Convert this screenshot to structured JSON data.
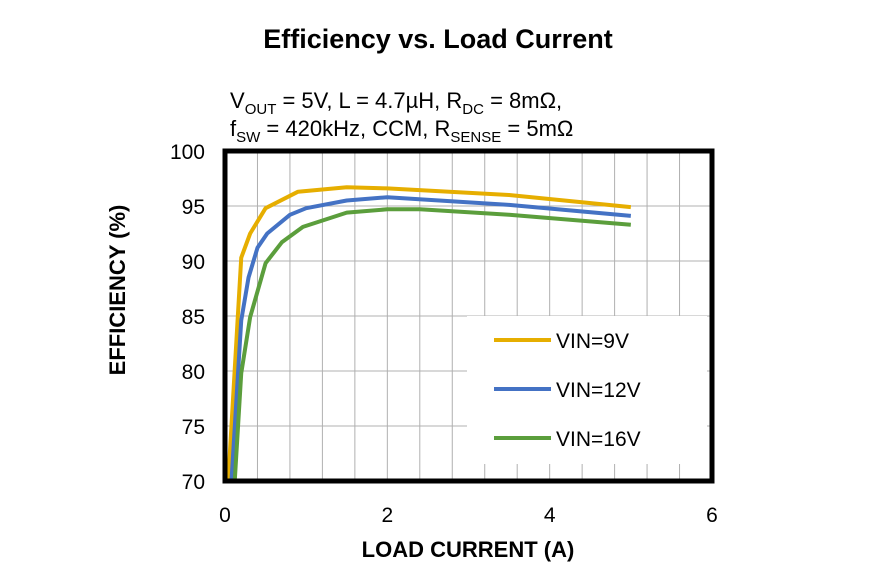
{
  "chart_data": {
    "type": "line",
    "title": "Efficiency vs. Load Current",
    "subtitle_line1": {
      "parts": [
        "V",
        "OUT",
        " = 5V, L = 4.7µH, R",
        "DC",
        " = 8mΩ,"
      ]
    },
    "subtitle_line2": {
      "parts": [
        "f",
        "SW",
        " = 420kHz, CCM, R",
        "SENSE",
        " = 5mΩ"
      ]
    },
    "xlabel": "LOAD CURRENT (A)",
    "ylabel": "EFFICIENCY (%)",
    "xlim": [
      0,
      6
    ],
    "ylim": [
      70,
      100
    ],
    "xticks": [
      0,
      2,
      4,
      6
    ],
    "yticks": [
      70,
      75,
      80,
      85,
      90,
      95,
      100
    ],
    "grid": true,
    "legend_position": "bottom-right",
    "series": [
      {
        "name": "VIN=9V",
        "color": "#E6AE00",
        "x": [
          0.04,
          0.2,
          0.31,
          0.5,
          0.9,
          1.5,
          2.0,
          3.5,
          5.0
        ],
        "y": [
          70,
          90.3,
          92.5,
          94.8,
          96.3,
          96.7,
          96.6,
          96.0,
          94.9
        ]
      },
      {
        "name": "VIN=12V",
        "color": "#4472C4",
        "x": [
          0.08,
          0.2,
          0.29,
          0.4,
          0.52,
          0.8,
          1.0,
          1.5,
          2.0,
          3.5,
          5.0
        ],
        "y": [
          70,
          84.6,
          88.5,
          91.2,
          92.5,
          94.2,
          94.8,
          95.5,
          95.8,
          95.1,
          94.1
        ]
      },
      {
        "name": "VIN=16V",
        "color": "#5B9E3C",
        "x": [
          0.12,
          0.2,
          0.31,
          0.5,
          0.7,
          0.96,
          1.5,
          2.0,
          2.4,
          3.5,
          5.0
        ],
        "y": [
          70,
          79.8,
          84.9,
          89.8,
          91.7,
          93.1,
          94.4,
          94.7,
          94.7,
          94.2,
          93.3
        ]
      }
    ]
  }
}
